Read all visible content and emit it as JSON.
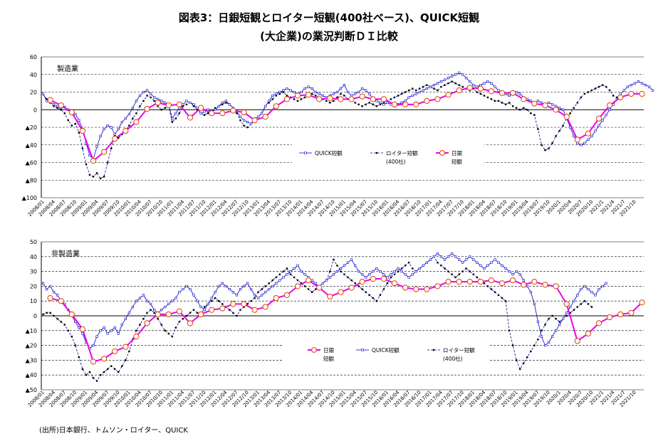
{
  "title_line1": "図表3：日銀短観とロイター短観(400社ベース)、QUICK短観",
  "title_line2": "(大企業)の業況判断ＤＩ比較",
  "source": "(出所)日本銀行、トムソン・ロイター、QUICK",
  "colors": {
    "tankan": "#ee00ee",
    "tankan_marker": "#e04000",
    "quick": "#0000cc",
    "reuters": "#0000aa",
    "grid": "#000000"
  },
  "x_tick_labels": [
    "2008/01",
    "2008/04",
    "2008/07",
    "2008/10",
    "2009/01",
    "2009/04",
    "2009/07",
    "2009/10",
    "2010/01",
    "2010/04",
    "2010/07",
    "2010/10",
    "2011/01",
    "2011/04",
    "2011/07",
    "2011/10",
    "2012/01",
    "2012/04",
    "2012/07",
    "2012/10",
    "2013/01",
    "2013/04",
    "2013/07",
    "2013/10",
    "2014/01",
    "2014/04",
    "2014/07",
    "2014/10",
    "2015/01",
    "2015/04",
    "2015/07",
    "2015/10",
    "2016/01",
    "2016/04",
    "2016/07",
    "2016/10",
    "2017/01",
    "2017/04",
    "2017/07",
    "2017/10",
    "2018/01",
    "2018/04",
    "2018/07",
    "2018/10",
    "2019/01",
    "2019/04",
    "2019/07",
    "2019/10",
    "2020/1",
    "2020/4",
    "2020/7",
    "2020/10",
    "2021/1",
    "2021/4",
    "2021/7",
    "2021/10"
  ],
  "chart_data": [
    {
      "type": "line",
      "panel_label": "製造業",
      "ylim": [
        -100,
        60
      ],
      "y_ticks": [
        60,
        40,
        20,
        0,
        -20,
        -40,
        -60,
        -80,
        -100
      ],
      "y_tick_labels": [
        "60",
        "40",
        "20",
        "0",
        "▲20",
        "▲40",
        "▲60",
        "▲80",
        "▲100"
      ],
      "x_range": [
        "2008/01",
        "2021/12"
      ],
      "legend_position": "middle",
      "series": [
        {
          "key": "tankan",
          "name": "日銀短観",
          "name_lines": [
            "日銀",
            "短観"
          ],
          "frequency": "quarterly",
          "x": [
            "2008/03",
            "2008/06",
            "2008/09",
            "2008/12",
            "2009/03",
            "2009/06",
            "2009/09",
            "2009/12",
            "2010/03",
            "2010/06",
            "2010/09",
            "2010/12",
            "2011/03",
            "2011/06",
            "2011/09",
            "2011/12",
            "2012/03",
            "2012/06",
            "2012/09",
            "2012/12",
            "2013/03",
            "2013/06",
            "2013/09",
            "2013/12",
            "2014/03",
            "2014/06",
            "2014/09",
            "2014/12",
            "2015/03",
            "2015/06",
            "2015/09",
            "2015/12",
            "2016/03",
            "2016/06",
            "2016/09",
            "2016/12",
            "2017/03",
            "2017/06",
            "2017/09",
            "2017/12",
            "2018/03",
            "2018/06",
            "2018/09",
            "2018/12",
            "2019/03",
            "2019/06",
            "2019/09",
            "2019/12",
            "2020/03",
            "2020/06",
            "2020/09",
            "2020/12",
            "2021/03",
            "2021/06",
            "2021/09",
            "2021/12"
          ],
          "values": [
            11,
            5,
            -3,
            -24,
            -58,
            -48,
            -33,
            -24,
            -14,
            1,
            8,
            5,
            6,
            -9,
            2,
            -4,
            -4,
            -1,
            -3,
            -12,
            -8,
            4,
            12,
            16,
            17,
            12,
            13,
            12,
            12,
            15,
            12,
            12,
            6,
            6,
            6,
            10,
            12,
            17,
            22,
            25,
            24,
            21,
            19,
            19,
            12,
            7,
            5,
            0,
            -8,
            -34,
            -27,
            -10,
            5,
            14,
            18,
            18
          ]
        },
        {
          "key": "quick",
          "name": "QUICK短観",
          "frequency": "monthly",
          "start": "2008/01",
          "values": [
            18,
            10,
            8,
            6,
            4,
            2,
            3,
            0,
            -2,
            -5,
            -12,
            -22,
            -38,
            -52,
            -56,
            -42,
            -30,
            -22,
            -18,
            -20,
            -28,
            -22,
            -14,
            -10,
            -5,
            2,
            10,
            16,
            20,
            22,
            18,
            14,
            12,
            10,
            8,
            6,
            -10,
            -4,
            2,
            6,
            10,
            8,
            6,
            2,
            -4,
            -2,
            0,
            -2,
            0,
            4,
            8,
            10,
            6,
            2,
            -2,
            -8,
            -12,
            -14,
            -16,
            -10,
            -8,
            -4,
            4,
            10,
            16,
            18,
            20,
            22,
            24,
            22,
            20,
            18,
            20,
            24,
            26,
            24,
            20,
            18,
            16,
            14,
            16,
            18,
            20,
            24,
            28,
            20,
            16,
            18,
            20,
            24,
            22,
            18,
            12,
            10,
            8,
            6,
            8,
            6,
            4,
            6,
            8,
            10,
            14,
            16,
            18,
            20,
            22,
            24,
            26,
            28,
            30,
            32,
            34,
            36,
            38,
            40,
            42,
            40,
            36,
            32,
            28,
            26,
            28,
            30,
            32,
            30,
            26,
            22,
            20,
            18,
            16,
            18,
            20,
            18,
            14,
            12,
            10,
            8,
            10,
            8,
            6,
            8,
            6,
            4,
            2,
            0,
            -10,
            -20,
            -30,
            -38,
            -40,
            -38,
            -34,
            -30,
            -24,
            -18,
            -12,
            -6,
            0,
            6,
            12,
            18,
            22,
            26,
            28,
            30,
            32,
            30,
            28,
            26,
            22
          ]
        },
        {
          "key": "reuters",
          "name": "ロイター短観",
          "name_lines": [
            "ロイター短観",
            "(400社)"
          ],
          "frequency": "monthly",
          "start": "2008/01",
          "values": [
            18,
            12,
            8,
            4,
            2,
            0,
            -4,
            -12,
            -18,
            -16,
            -26,
            -44,
            -62,
            -74,
            -76,
            -72,
            -78,
            -76,
            -60,
            -44,
            -30,
            -32,
            -28,
            -24,
            -18,
            -10,
            -4,
            4,
            10,
            16,
            14,
            10,
            4,
            0,
            2,
            4,
            -14,
            -10,
            -4,
            4,
            6,
            8,
            4,
            0,
            -4,
            -6,
            -4,
            -2,
            2,
            4,
            6,
            8,
            6,
            2,
            -4,
            -12,
            -18,
            -20,
            -16,
            -12,
            -8,
            -4,
            4,
            8,
            12,
            16,
            18,
            20,
            16,
            14,
            12,
            10,
            12,
            14,
            16,
            18,
            16,
            14,
            12,
            10,
            8,
            10,
            14,
            18,
            16,
            12,
            10,
            8,
            6,
            4,
            6,
            8,
            6,
            4,
            6,
            8,
            10,
            12,
            14,
            16,
            18,
            20,
            22,
            24,
            22,
            24,
            26,
            28,
            26,
            24,
            22,
            26,
            28,
            30,
            32,
            30,
            28,
            26,
            24,
            22,
            24,
            20,
            18,
            16,
            14,
            12,
            10,
            10,
            8,
            6,
            8,
            4,
            2,
            0,
            2,
            0,
            -4,
            -6,
            -22,
            -40,
            -46,
            -44,
            -38,
            -30,
            -24,
            -18,
            -10,
            -4,
            2,
            8,
            14,
            18,
            20,
            22,
            24,
            26,
            28,
            26,
            22,
            16,
            14,
            12
          ]
        }
      ]
    },
    {
      "type": "line",
      "panel_label": "非製造業",
      "ylim": [
        -50,
        50
      ],
      "y_ticks": [
        50,
        40,
        30,
        20,
        10,
        0,
        -10,
        -20,
        -30,
        -40,
        -50
      ],
      "y_tick_labels": [
        "50",
        "40",
        "30",
        "20",
        "10",
        "0",
        "▲10",
        "▲20",
        "▲30",
        "▲40",
        "▲50"
      ],
      "x_range": [
        "2008/01",
        "2021/12"
      ],
      "legend_position": "bottom-center",
      "series": [
        {
          "key": "tankan",
          "name": "日銀短観",
          "name_lines": [
            "日銀",
            "短観"
          ],
          "frequency": "quarterly",
          "x": [
            "2008/03",
            "2008/06",
            "2008/09",
            "2008/12",
            "2009/03",
            "2009/06",
            "2009/09",
            "2009/12",
            "2010/03",
            "2010/06",
            "2010/09",
            "2010/12",
            "2011/03",
            "2011/06",
            "2011/09",
            "2011/12",
            "2012/03",
            "2012/06",
            "2012/09",
            "2012/12",
            "2013/03",
            "2013/06",
            "2013/09",
            "2013/12",
            "2014/03",
            "2014/06",
            "2014/09",
            "2014/12",
            "2015/03",
            "2015/06",
            "2015/09",
            "2015/12",
            "2016/03",
            "2016/06",
            "2016/09",
            "2016/12",
            "2017/03",
            "2017/06",
            "2017/09",
            "2017/12",
            "2018/03",
            "2018/06",
            "2018/09",
            "2018/12",
            "2019/03",
            "2019/06",
            "2019/09",
            "2019/12",
            "2020/03",
            "2020/06",
            "2020/09",
            "2020/12",
            "2021/03",
            "2021/06",
            "2021/09",
            "2021/12"
          ],
          "values": [
            12,
            10,
            1,
            -9,
            -31,
            -29,
            -24,
            -21,
            -14,
            -5,
            1,
            1,
            3,
            -5,
            1,
            4,
            5,
            8,
            8,
            4,
            6,
            12,
            14,
            20,
            24,
            19,
            13,
            16,
            19,
            23,
            25,
            25,
            22,
            19,
            18,
            18,
            20,
            23,
            23,
            23,
            23,
            24,
            22,
            24,
            21,
            23,
            21,
            20,
            8,
            -17,
            -12,
            -5,
            -1,
            1,
            2,
            9
          ]
        },
        {
          "key": "quick",
          "name": "QUICK短観",
          "frequency": "monthly",
          "start": "2008/01",
          "values": [
            22,
            18,
            20,
            16,
            14,
            10,
            8,
            4,
            0,
            -4,
            -8,
            -12,
            -18,
            -22,
            -20,
            -14,
            -10,
            -8,
            -12,
            -10,
            -8,
            -12,
            -6,
            -2,
            2,
            6,
            10,
            12,
            14,
            10,
            8,
            4,
            2,
            4,
            6,
            8,
            10,
            12,
            16,
            18,
            20,
            18,
            14,
            10,
            6,
            4,
            8,
            12,
            16,
            20,
            22,
            20,
            18,
            16,
            14,
            18,
            20,
            22,
            18,
            14,
            12,
            14,
            16,
            18,
            20,
            22,
            24,
            26,
            28,
            30,
            32,
            34,
            30,
            28,
            26,
            24,
            22,
            20,
            22,
            24,
            26,
            28,
            30,
            32,
            34,
            36,
            38,
            34,
            30,
            28,
            26,
            28,
            30,
            32,
            30,
            28,
            26,
            28,
            30,
            32,
            30,
            28,
            26,
            28,
            30,
            32,
            34,
            36,
            38,
            40,
            42,
            40,
            38,
            40,
            42,
            40,
            38,
            36,
            38,
            40,
            38,
            36,
            34,
            32,
            34,
            36,
            38,
            36,
            34,
            32,
            30,
            28,
            30,
            28,
            24,
            20,
            16,
            8,
            -4,
            -14,
            -20,
            -18,
            -14,
            -10,
            -6,
            -2,
            2,
            6,
            10,
            14,
            18,
            20,
            18,
            16,
            14,
            18,
            20,
            22
          ]
        },
        {
          "key": "reuters",
          "name": "ロイター短観",
          "name_lines": [
            "ロイター短観",
            "(400社)"
          ],
          "frequency": "monthly",
          "start": "2008/01",
          "values": [
            1,
            2,
            2,
            0,
            -2,
            -4,
            -6,
            -10,
            -14,
            -20,
            -28,
            -36,
            -40,
            -38,
            -42,
            -44,
            -40,
            -38,
            -36,
            -34,
            -36,
            -38,
            -34,
            -30,
            -24,
            -16,
            -10,
            -6,
            -2,
            2,
            4,
            2,
            -2,
            -6,
            -10,
            -12,
            -14,
            -8,
            -4,
            -2,
            0,
            2,
            4,
            2,
            0,
            6,
            8,
            10,
            12,
            10,
            8,
            6,
            4,
            2,
            0,
            4,
            6,
            8,
            10,
            12,
            16,
            18,
            20,
            22,
            24,
            26,
            28,
            30,
            32,
            28,
            26,
            24,
            22,
            20,
            18,
            16,
            18,
            20,
            22,
            24,
            30,
            38,
            34,
            30,
            28,
            26,
            24,
            22,
            20,
            18,
            16,
            14,
            12,
            10,
            14,
            18,
            22,
            26,
            28,
            30,
            32,
            34,
            36,
            32,
            30,
            32,
            34,
            36,
            38,
            40,
            36,
            34,
            32,
            30,
            28,
            26,
            28,
            30,
            32,
            30,
            28,
            26,
            24,
            22,
            20,
            18,
            16,
            14,
            12,
            10,
            -10,
            -20,
            -30,
            -36,
            -32,
            -28,
            -24,
            -20,
            -16,
            -10,
            -6,
            -2,
            0,
            -2,
            -4,
            -2,
            0,
            2,
            4,
            6,
            8,
            10,
            8,
            6
          ]
        }
      ]
    }
  ]
}
